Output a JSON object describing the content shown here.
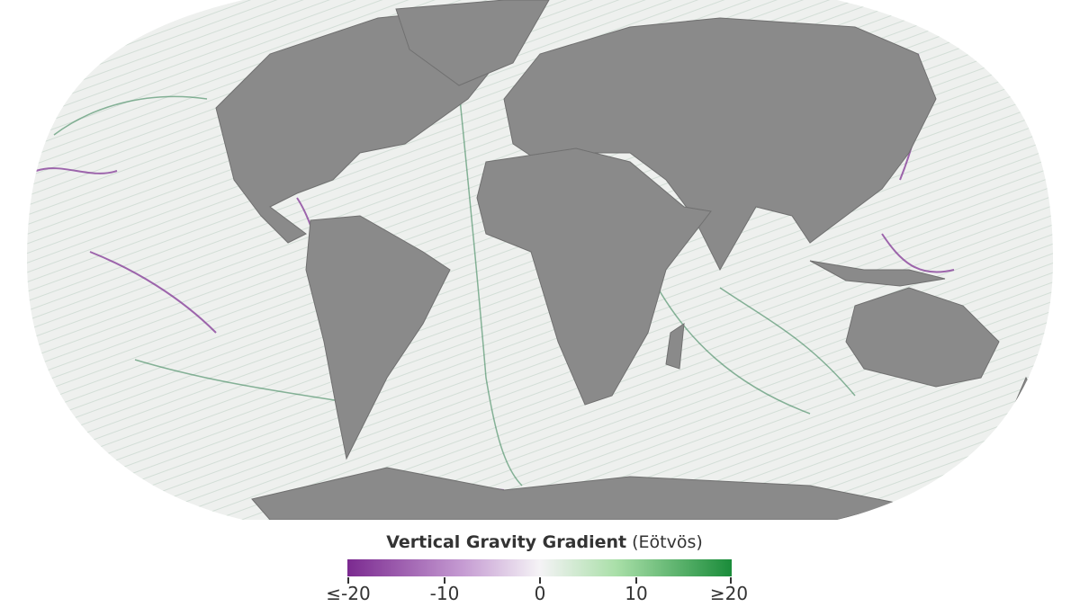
{
  "legend": {
    "title": "Vertical Gravity Gradient",
    "unit": "(Eötvös)",
    "ticks": [
      "≤-20",
      "-10",
      "0",
      "10",
      "≥20"
    ],
    "tick_values": [
      -20,
      -10,
      0,
      10,
      20
    ],
    "colors": {
      "min": "#7b2a90",
      "mid": "#f5f3f6",
      "max": "#1a8c3a"
    }
  },
  "map": {
    "projection": "Robinson",
    "land_color": "#8a8a8a",
    "ocean_color": "#eef0ee",
    "negative_color": "#7b2a90",
    "positive_color": "#1a8c3a"
  }
}
